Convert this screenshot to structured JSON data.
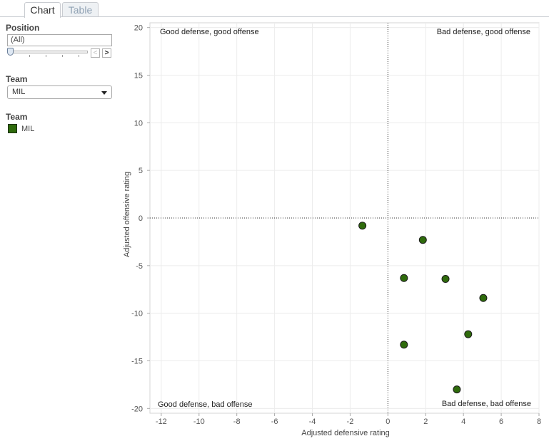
{
  "tabs": [
    {
      "label": "Chart",
      "active": true
    },
    {
      "label": "Table",
      "active": false
    }
  ],
  "filters": {
    "position": {
      "title": "Position",
      "value": "(All)",
      "prev_glyph": "<",
      "next_glyph": ">"
    },
    "team": {
      "title": "Team",
      "selected": "MIL"
    }
  },
  "legend": {
    "title": "Team",
    "items": [
      {
        "label": "MIL",
        "color": "#2f6b0c"
      }
    ]
  },
  "chart_data": {
    "type": "scatter",
    "xlabel": "Adjusted defensive rating",
    "ylabel": "Adjusted offensive rating",
    "xlim": [
      -12.6,
      8
    ],
    "ylim": [
      -20.5,
      20.5
    ],
    "xticks": [
      -12,
      -10,
      -8,
      -6,
      -4,
      -2,
      0,
      2,
      4,
      6,
      8
    ],
    "yticks": [
      20,
      15,
      10,
      5,
      0,
      -5,
      -10,
      -15,
      -20
    ],
    "grid": true,
    "reference_lines": {
      "x": 0,
      "y": 0
    },
    "quadrant_labels": {
      "top_left": "Good defense, good offense",
      "top_right": "Bad defense, good offense",
      "bottom_left": "Good defense, bad offense",
      "bottom_right": "Bad defense, bad offense"
    },
    "series": [
      {
        "color": "#2f6b0c",
        "points": [
          {
            "x": -1.35,
            "y": -0.8
          },
          {
            "x": 1.85,
            "y": -2.3
          },
          {
            "x": 0.85,
            "y": -6.3
          },
          {
            "x": 3.05,
            "y": -6.4
          },
          {
            "x": 5.05,
            "y": -8.4
          },
          {
            "x": 4.25,
            "y": -12.2
          },
          {
            "x": 0.85,
            "y": -13.3
          },
          {
            "x": 3.65,
            "y": -18.0
          }
        ]
      }
    ]
  }
}
